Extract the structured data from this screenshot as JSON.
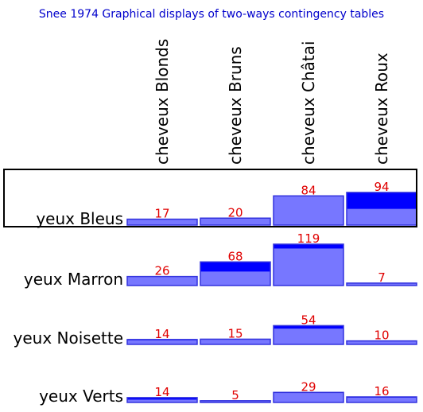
{
  "chart_data": {
    "type": "bar",
    "title": "Snee 1974 Graphical displays of two-ways contingency tables",
    "columns": [
      "cheveux Blonds",
      "cheveux Bruns",
      "cheveux Châtai",
      "cheveux Roux"
    ],
    "rows": [
      {
        "name": "yeux Bleus",
        "values": [
          17,
          20,
          84,
          94
        ]
      },
      {
        "name": "yeux Marron",
        "values": [
          26,
          68,
          119,
          7
        ]
      },
      {
        "name": "yeux Noisette",
        "values": [
          14,
          15,
          54,
          10
        ]
      },
      {
        "name": "yeux Verts",
        "values": [
          14,
          5,
          29,
          16
        ]
      }
    ],
    "highlighted_row": "yeux Bleus",
    "colors": {
      "expected_fill": "#7777ff",
      "excess_fill": "#0000ff",
      "border": "#3333dd",
      "value_label": "#e00000",
      "title": "#0000cc"
    }
  }
}
